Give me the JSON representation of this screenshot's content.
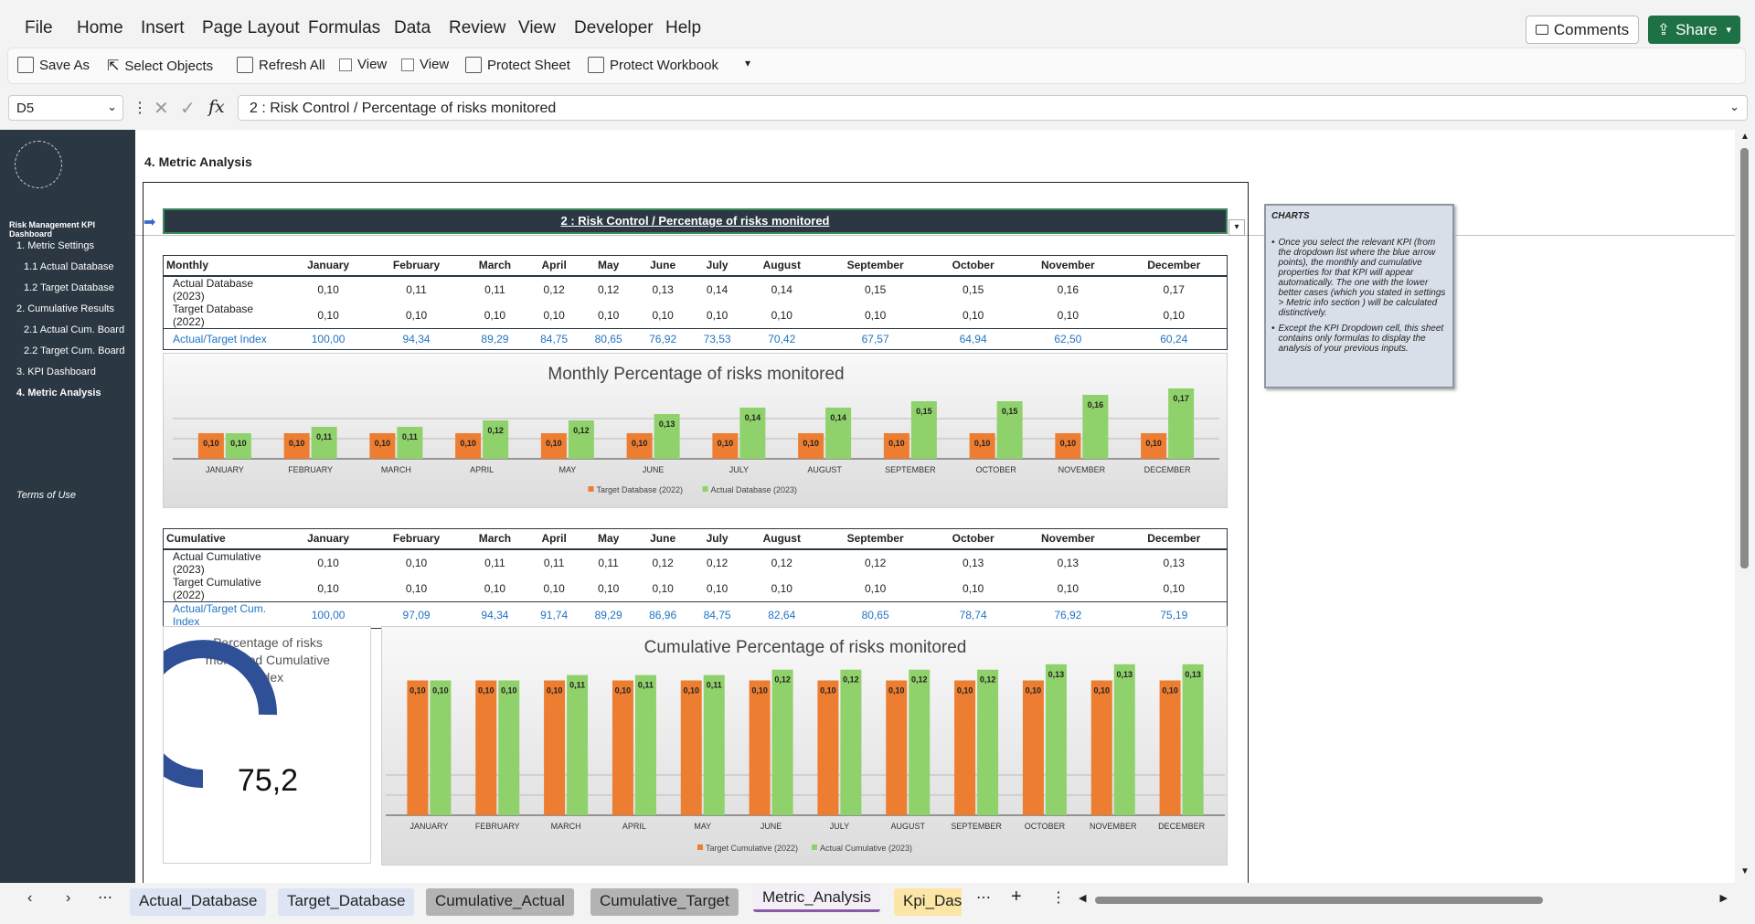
{
  "menu": {
    "items": [
      "File",
      "Home",
      "Insert",
      "Page Layout",
      "Formulas",
      "Data",
      "Review",
      "View",
      "Developer",
      "Help"
    ],
    "comments": "Comments",
    "share": "Share"
  },
  "ribbon": {
    "save_as": "Save As",
    "select_objects": "Select Objects",
    "refresh_all": "Refresh All",
    "view1": "View",
    "view2": "View",
    "protect_sheet": "Protect Sheet",
    "protect_workbook": "Protect Workbook"
  },
  "formula_bar": {
    "cell": "D5",
    "fx": "fx",
    "content": "2 : Risk Control / Percentage of risks monitored"
  },
  "sidebar": {
    "title": "Risk Management KPI Dashboard",
    "items": [
      "1. Metric Settings",
      "1.1 Actual Database",
      "1.2 Target Database",
      "2. Cumulative Results",
      "2.1 Actual Cum. Board",
      "2.2 Target Cum. Board",
      "3. KPI Dashboard",
      "4. Metric Analysis"
    ],
    "terms": "Terms of Use"
  },
  "section_title": "4. Metric Analysis",
  "kpi_header": "2 : Risk Control / Percentage of risks monitored",
  "months": [
    "January",
    "February",
    "March",
    "April",
    "May",
    "June",
    "July",
    "August",
    "September",
    "October",
    "November",
    "December"
  ],
  "months_upper": [
    "JANUARY",
    "FEBRUARY",
    "MARCH",
    "APRIL",
    "MAY",
    "JUNE",
    "JULY",
    "AUGUST",
    "SEPTEMBER",
    "OCTOBER",
    "NOVEMBER",
    "DECEMBER"
  ],
  "monthly_table": {
    "header": "Monthly",
    "rows": [
      {
        "label": "Actual Database (2023)",
        "values": [
          "0,10",
          "0,11",
          "0,11",
          "0,12",
          "0,12",
          "0,13",
          "0,14",
          "0,14",
          "0,15",
          "0,15",
          "0,16",
          "0,17"
        ]
      },
      {
        "label": "Target Database (2022)",
        "values": [
          "0,10",
          "0,10",
          "0,10",
          "0,10",
          "0,10",
          "0,10",
          "0,10",
          "0,10",
          "0,10",
          "0,10",
          "0,10",
          "0,10"
        ]
      },
      {
        "label": "Actual/Target Index",
        "values": [
          "100,00",
          "94,34",
          "89,29",
          "84,75",
          "80,65",
          "76,92",
          "73,53",
          "70,42",
          "67,57",
          "64,94",
          "62,50",
          "60,24"
        ]
      }
    ]
  },
  "cumulative_table": {
    "header": "Cumulative",
    "rows": [
      {
        "label": "Actual Cumulative (2023)",
        "values": [
          "0,10",
          "0,10",
          "0,11",
          "0,11",
          "0,11",
          "0,12",
          "0,12",
          "0,12",
          "0,12",
          "0,13",
          "0,13",
          "0,13"
        ]
      },
      {
        "label": "Target Cumulative (2022)",
        "values": [
          "0,10",
          "0,10",
          "0,10",
          "0,10",
          "0,10",
          "0,10",
          "0,10",
          "0,10",
          "0,10",
          "0,10",
          "0,10",
          "0,10"
        ]
      },
      {
        "label": "Actual/Target Cum. Index",
        "values": [
          "100,00",
          "97,09",
          "94,34",
          "91,74",
          "89,29",
          "86,96",
          "84,75",
          "82,64",
          "80,65",
          "78,74",
          "76,92",
          "75,19"
        ]
      }
    ]
  },
  "colors": {
    "orange": "#ed7d31",
    "green": "#8fd16a",
    "navy": "#2b3743",
    "gauge": "#2f4f96",
    "blue_text": "#1f74c4"
  },
  "chart_data": [
    {
      "type": "bar",
      "title": "Monthly Percentage of risks monitored",
      "categories": [
        "JANUARY",
        "FEBRUARY",
        "MARCH",
        "APRIL",
        "MAY",
        "JUNE",
        "JULY",
        "AUGUST",
        "SEPTEMBER",
        "OCTOBER",
        "NOVEMBER",
        "DECEMBER"
      ],
      "series": [
        {
          "name": "Target Database (2022)",
          "values": [
            0.1,
            0.1,
            0.1,
            0.1,
            0.1,
            0.1,
            0.1,
            0.1,
            0.1,
            0.1,
            0.1,
            0.1
          ],
          "labels": [
            "0,10",
            "0,10",
            "0,10",
            "0,10",
            "0,10",
            "0,10",
            "0,10",
            "0,10",
            "0,10",
            "0,10",
            "0,10",
            "0,10"
          ]
        },
        {
          "name": "Actual Database (2023)",
          "values": [
            0.1,
            0.11,
            0.11,
            0.12,
            0.12,
            0.13,
            0.14,
            0.14,
            0.15,
            0.15,
            0.16,
            0.17
          ],
          "labels": [
            "0,10",
            "0,11",
            "0,11",
            "0,12",
            "0,12",
            "0,13",
            "0,14",
            "0,14",
            "0,15",
            "0,15",
            "0,16",
            "0,17"
          ]
        }
      ],
      "legend": "bottom"
    },
    {
      "type": "bar",
      "title": "Cumulative Percentage of risks monitored",
      "categories": [
        "JANUARY",
        "FEBRUARY",
        "MARCH",
        "APRIL",
        "MAY",
        "JUNE",
        "JULY",
        "AUGUST",
        "SEPTEMBER",
        "OCTOBER",
        "NOVEMBER",
        "DECEMBER"
      ],
      "series": [
        {
          "name": "Target Cumulative (2022)",
          "values": [
            0.1,
            0.1,
            0.1,
            0.1,
            0.1,
            0.1,
            0.1,
            0.1,
            0.1,
            0.1,
            0.1,
            0.1
          ],
          "labels": [
            "0,10",
            "0,10",
            "0,10",
            "0,10",
            "0,10",
            "0,10",
            "0,10",
            "0,10",
            "0,10",
            "0,10",
            "0,10",
            "0,10"
          ]
        },
        {
          "name": "Actual Cumulative (2023)",
          "values": [
            0.1,
            0.1,
            0.11,
            0.11,
            0.11,
            0.12,
            0.12,
            0.12,
            0.12,
            0.13,
            0.13,
            0.13
          ],
          "labels": [
            "0,10",
            "0,10",
            "0,11",
            "0,11",
            "0,11",
            "0,12",
            "0,12",
            "0,12",
            "0,12",
            "0,13",
            "0,13",
            "0,13"
          ]
        }
      ],
      "legend": "bottom"
    },
    {
      "type": "pie",
      "title": "Percentage of risks monitored Cumulative Index",
      "value": 75.2,
      "value_label": "75,2",
      "max": 100
    }
  ],
  "notes": {
    "title": "CHARTS",
    "bullets": [
      "Once you select the relevant KPI (from the dropdown list where the blue arrow points), the monthly and cumulative properties for that KPI will appear automatically. The one with the lower better cases (which you stated in settings > Metric info section ) will be calculated distinctively.",
      "Except the KPI Dropdown cell, this sheet contains only formulas to display the analysis of your previous inputs."
    ]
  },
  "tabs": [
    "Actual_Database",
    "Target_Database",
    "Cumulative_Actual",
    "Cumulative_Target",
    "Metric_Analysis",
    "Kpi_Dash"
  ]
}
